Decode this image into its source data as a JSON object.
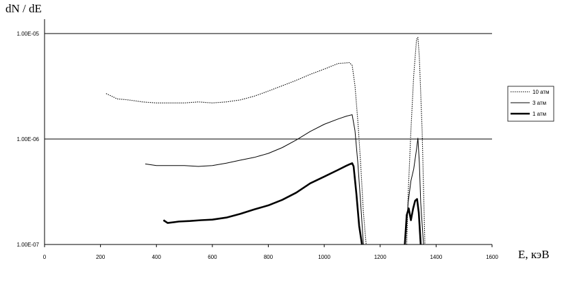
{
  "chart_data": {
    "type": "line",
    "ylabel": "dN / dE",
    "xlabel": "E,  кэВ",
    "xlim": [
      0,
      1600
    ],
    "ylim": [
      1e-07,
      1.4e-05
    ],
    "yscale": "log",
    "xticks": [
      0,
      200,
      400,
      600,
      800,
      1000,
      1200,
      1400,
      1600
    ],
    "yticks": [
      {
        "value": 1e-07,
        "label": "1.00E-07"
      },
      {
        "value": 1e-06,
        "label": "1.00E-06"
      },
      {
        "value": 1e-05,
        "label": "1.00E-05"
      }
    ],
    "grid": "horizontal at decades",
    "legend_position": "right",
    "series": [
      {
        "name": "10 атм",
        "style": "dotted",
        "segments": [
          {
            "x": [
              220,
              260,
              300,
              350,
              400,
              450,
              500,
              550,
              600,
              650,
              700,
              750,
              800,
              850,
              900,
              950,
              1000,
              1050,
              1090,
              1100,
              1110,
              1120,
              1130,
              1140,
              1150
            ],
            "y": [
              2.7e-06,
              2.4e-06,
              2.35e-06,
              2.25e-06,
              2.2e-06,
              2.2e-06,
              2.2e-06,
              2.25e-06,
              2.2e-06,
              2.25e-06,
              2.35e-06,
              2.55e-06,
              2.85e-06,
              3.2e-06,
              3.6e-06,
              4.1e-06,
              4.6e-06,
              5.2e-06,
              5.3e-06,
              5e-06,
              3.2e-06,
              1.5e-06,
              6e-07,
              2e-07,
              1e-07
            ]
          },
          {
            "x": [
              1295,
              1300,
              1310,
              1320,
              1330,
              1335,
              1340,
              1350,
              1360
            ],
            "y": [
              1e-07,
              3e-07,
              1.2e-06,
              4e-06,
              8.8e-06,
              9.2e-06,
              6e-06,
              1.2e-06,
              1e-07
            ]
          }
        ]
      },
      {
        "name": "3 атм",
        "style": "thin",
        "segments": [
          {
            "x": [
              360,
              400,
              450,
              500,
              550,
              600,
              650,
              700,
              750,
              800,
              850,
              900,
              950,
              1000,
              1050,
              1080,
              1100,
              1110,
              1120,
              1130,
              1140
            ],
            "y": [
              5.8e-07,
              5.6e-07,
              5.6e-07,
              5.6e-07,
              5.5e-07,
              5.6e-07,
              5.9e-07,
              6.3e-07,
              6.7e-07,
              7.3e-07,
              8.3e-07,
              9.8e-07,
              1.18e-06,
              1.38e-06,
              1.55e-06,
              1.65e-06,
              1.7e-06,
              1.2e-06,
              6e-07,
              2.5e-07,
              1e-07
            ]
          },
          {
            "x": [
              1290,
              1300,
              1310,
              1320,
              1330,
              1335,
              1340,
              1345,
              1355
            ],
            "y": [
              1e-07,
              2.5e-07,
              4e-07,
              5.2e-07,
              8e-07,
              1.02e-06,
              6e-07,
              2.5e-07,
              1e-07
            ]
          }
        ]
      },
      {
        "name": "1 атм",
        "style": "thick",
        "segments": [
          {
            "x": [
              425,
              440,
              480,
              520,
              560,
              600,
              650,
              700,
              750,
              800,
              850,
              900,
              950,
              1000,
              1050,
              1080,
              1100,
              1105,
              1115,
              1125,
              1135
            ],
            "y": [
              1.7e-07,
              1.6e-07,
              1.65e-07,
              1.67e-07,
              1.7e-07,
              1.72e-07,
              1.8e-07,
              1.95e-07,
              2.15e-07,
              2.35e-07,
              2.65e-07,
              3.1e-07,
              3.8e-07,
              4.4e-07,
              5.1e-07,
              5.6e-07,
              5.9e-07,
              5.5e-07,
              3e-07,
              1.5e-07,
              1e-07
            ]
          },
          {
            "x": [
              1288,
              1295,
              1302,
              1310,
              1318,
              1325,
              1332,
              1338,
              1345
            ],
            "y": [
              1e-07,
              1.9e-07,
              2.2e-07,
              1.7e-07,
              2.2e-07,
              2.6e-07,
              2.7e-07,
              2e-07,
              1e-07
            ]
          }
        ]
      }
    ]
  }
}
